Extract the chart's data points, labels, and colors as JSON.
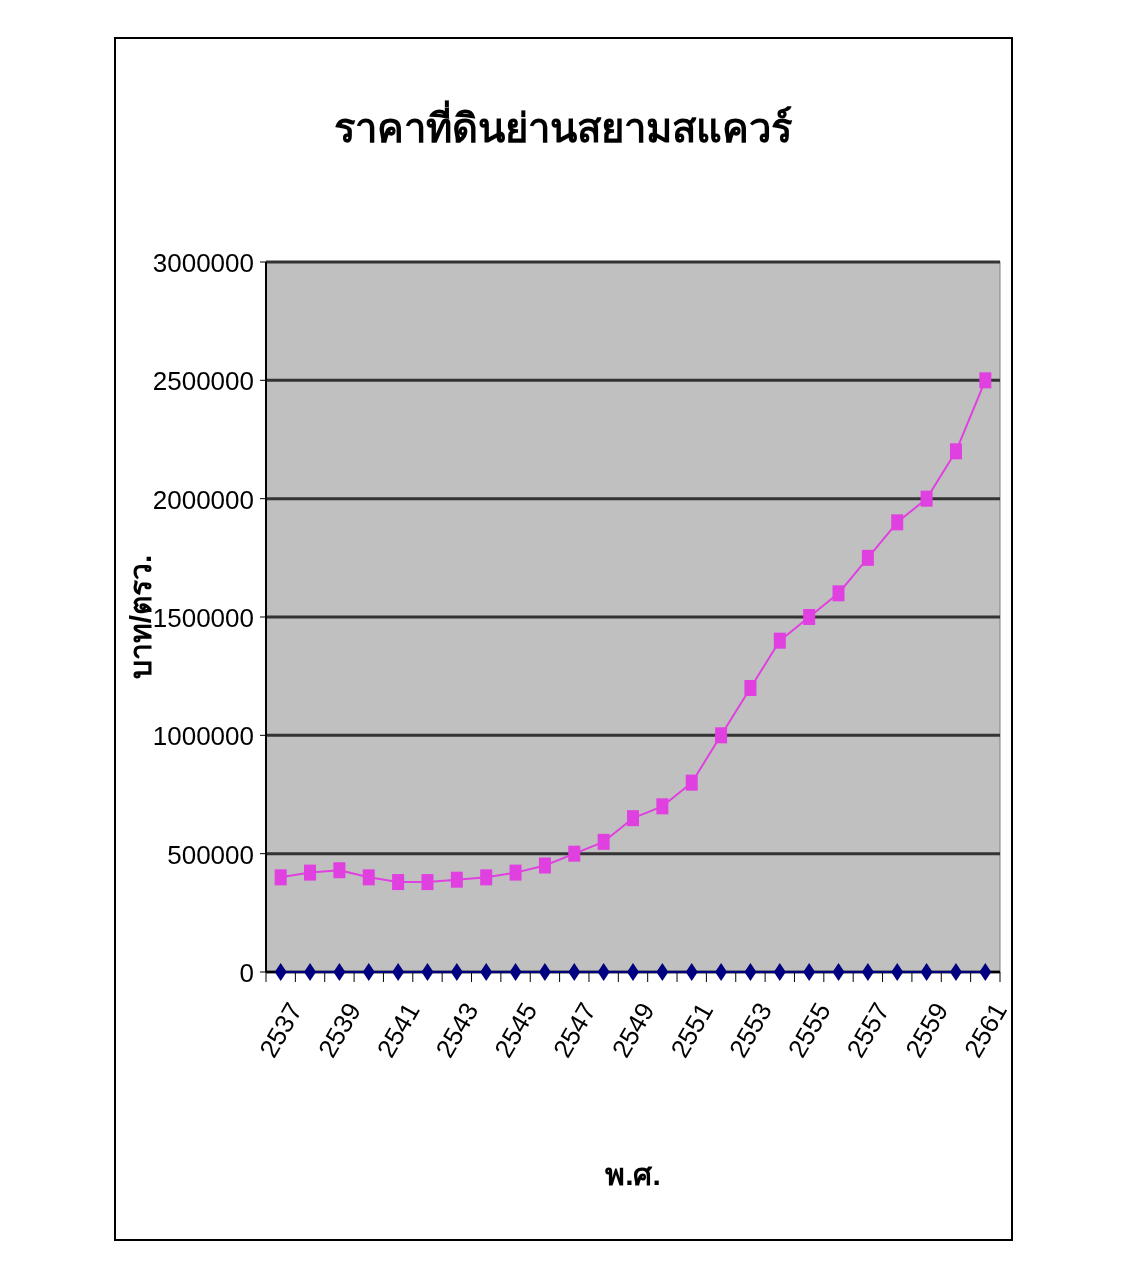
{
  "chart_data": {
    "type": "line",
    "title": "ราคาที่ดินย่านสยามสแควร์",
    "xlabel": "พ.ศ.",
    "ylabel": "บาท/ตรว.",
    "categories": [
      "2537",
      null,
      "2539",
      null,
      "2541",
      null,
      "2543",
      null,
      "2545",
      null,
      "2547",
      null,
      "2549",
      null,
      "2551",
      null,
      "2553",
      null,
      "2555",
      null,
      "2557",
      null,
      "2559",
      null,
      "2561"
    ],
    "series": [
      {
        "color": "#e040e0",
        "marker": "square",
        "values": [
          400000,
          420000,
          430000,
          400000,
          380000,
          380000,
          390000,
          400000,
          420000,
          450000,
          500000,
          550000,
          650000,
          700000,
          800000,
          1000000,
          1200000,
          1400000,
          1500000,
          1600000,
          1750000,
          1900000,
          2000000,
          2200000,
          2500000
        ]
      },
      {
        "color": "#000080",
        "marker": "diamond",
        "values": [
          0,
          0,
          0,
          0,
          0,
          0,
          0,
          0,
          0,
          0,
          0,
          0,
          0,
          0,
          0,
          0,
          0,
          0,
          0,
          0,
          0,
          0,
          0,
          0,
          0
        ]
      }
    ],
    "ylim": [
      0,
      3000000
    ],
    "yticks": [
      0,
      500000,
      1000000,
      1500000,
      2000000,
      2500000,
      3000000
    ],
    "grid": "y"
  }
}
